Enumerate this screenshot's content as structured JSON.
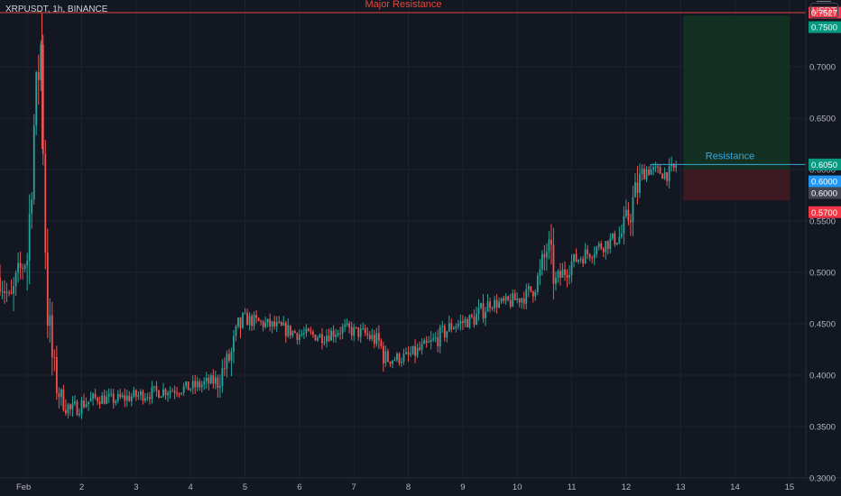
{
  "header": {
    "symbol_title": "XRPUSDT, 1h, BINANCE",
    "unit_label": "USDT"
  },
  "colors": {
    "background": "#131722",
    "grid": "#1f2330",
    "axis_text": "#b2b5be",
    "up": "#26a69a",
    "down": "#ef5350",
    "resistance_line": "#e0483f",
    "local_resistance": "#3aa7d8",
    "profit_zone": "#123122",
    "stop_zone": "#3d1a22",
    "target_tag": "#089981",
    "stop_tag": "#f23645",
    "entry_tag": "#2196f3",
    "last_price_tag": "#434651"
  },
  "chart_data": {
    "type": "candlestick",
    "title": "XRPUSDT, 1h, BINANCE",
    "x_ticks": [
      "Feb",
      "2",
      "3",
      "4",
      "5",
      "6",
      "7",
      "8",
      "9",
      "10",
      "11",
      "12",
      "13",
      "14",
      "15"
    ],
    "y_ticks": [
      "0.7000",
      "0.6500",
      "0.6000",
      "0.5500",
      "0.5000",
      "0.4500",
      "0.4000",
      "0.3500",
      "0.3000"
    ],
    "y_range": [
      0.3,
      0.765
    ],
    "x_range_days": [
      0.5,
      15.3
    ],
    "price_path": [
      [
        0.5,
        0.495
      ],
      [
        0.7,
        0.47
      ],
      [
        0.85,
        0.5
      ],
      [
        1.0,
        0.515
      ],
      [
        1.08,
        0.59
      ],
      [
        1.14,
        0.66
      ],
      [
        1.2,
        0.69
      ],
      [
        1.26,
        0.727
      ],
      [
        1.3,
        0.6
      ],
      [
        1.36,
        0.47
      ],
      [
        1.48,
        0.405
      ],
      [
        1.6,
        0.38
      ],
      [
        1.8,
        0.365
      ],
      [
        2.0,
        0.372
      ],
      [
        2.3,
        0.378
      ],
      [
        2.6,
        0.376
      ],
      [
        3.0,
        0.38
      ],
      [
        3.5,
        0.385
      ],
      [
        4.0,
        0.388
      ],
      [
        4.5,
        0.395
      ],
      [
        4.75,
        0.42
      ],
      [
        4.95,
        0.455
      ],
      [
        5.2,
        0.452
      ],
      [
        5.5,
        0.448
      ],
      [
        6.0,
        0.44
      ],
      [
        6.4,
        0.438
      ],
      [
        6.8,
        0.445
      ],
      [
        7.2,
        0.44
      ],
      [
        7.45,
        0.432
      ],
      [
        7.6,
        0.415
      ],
      [
        8.0,
        0.418
      ],
      [
        8.4,
        0.43
      ],
      [
        8.8,
        0.448
      ],
      [
        9.2,
        0.455
      ],
      [
        9.5,
        0.47
      ],
      [
        9.8,
        0.47
      ],
      [
        10.2,
        0.478
      ],
      [
        10.45,
        0.5
      ],
      [
        10.55,
        0.525
      ],
      [
        10.7,
        0.49
      ],
      [
        11.0,
        0.51
      ],
      [
        11.5,
        0.525
      ],
      [
        11.9,
        0.535
      ],
      [
        12.05,
        0.555
      ],
      [
        12.25,
        0.59
      ],
      [
        12.35,
        0.6
      ],
      [
        12.6,
        0.598
      ],
      [
        12.8,
        0.595
      ],
      [
        12.95,
        0.604
      ]
    ],
    "lines": [
      {
        "name": "Major Resistance",
        "value": 0.7527
      },
      {
        "name": "Resistance",
        "value": 0.605,
        "x_start_day": 12.45
      }
    ],
    "position": {
      "type": "long",
      "entry": 0.6,
      "target": 0.75,
      "stop": 0.57,
      "x_start_day": 13.05,
      "x_end_day": 15.0
    },
    "price_tags": [
      {
        "value": "0.7527",
        "role": "major-resistance"
      },
      {
        "value": "0.7500",
        "role": "target"
      },
      {
        "value": "0.6050",
        "role": "resistance"
      },
      {
        "value": "0.6000",
        "role": "entry"
      },
      {
        "value": "0.6000",
        "role": "last-price"
      },
      {
        "value": "0.5700",
        "role": "stop"
      }
    ]
  }
}
